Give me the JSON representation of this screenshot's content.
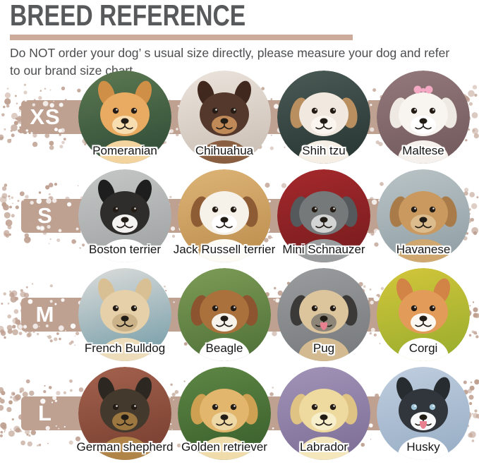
{
  "header": {
    "title": "BREED REFERENCE",
    "line1": "Do NOT order your dog’ s usual size directly, please measure your dog and refer",
    "line2": "to our brand size chart"
  },
  "colors": {
    "title": "#58595b",
    "body_text": "#4c4d4f",
    "divider_bar": "#cdab9a",
    "splatter_band": "#bfa192",
    "size_label": "#ffffff",
    "breed_label": "#161616"
  },
  "rows": [
    {
      "size": "XS",
      "breeds": [
        {
          "name": "Pomeranian",
          "ears": "pointy",
          "bg": [
            "#5d7a52",
            "#34503a"
          ],
          "fur": "#e9aa62",
          "ear": "#cf8f47",
          "muzzle": "#f7ddb0",
          "chest": "#f3d49e"
        },
        {
          "name": "Chihuahua",
          "ears": "pointy",
          "bg": [
            "#ece5dd",
            "#cdc2b8"
          ],
          "fur": "#54382b",
          "ear": "#41281f",
          "muzzle": "#c08a58",
          "chest": "#8a5f41"
        },
        {
          "name": "Shih tzu",
          "ears": "floppy",
          "bg": [
            "#4a5a55",
            "#2c3a37"
          ],
          "fur": "#f1e9df",
          "ear": "#b98f60",
          "muzzle": "#faf6ef",
          "chest": "#f5efe6"
        },
        {
          "name": "Maltese",
          "ears": "floppy",
          "bg": [
            "#93797b",
            "#765d60"
          ],
          "fur": "#f8f4f0",
          "ear": "#efe9e3",
          "muzzle": "#ffffff",
          "chest": "#f6f1ec",
          "bow": "#f3a9c3"
        }
      ]
    },
    {
      "size": "S",
      "breeds": [
        {
          "name": "Boston terrier",
          "ears": "pointy",
          "bg": [
            "#c6c8c8",
            "#a3a6a6"
          ],
          "fur": "#2e2d2c",
          "ear": "#1f1e1e",
          "muzzle": "#f4f3f1",
          "chest": "#ffffff"
        },
        {
          "name": "Jack Russell terrier",
          "ears": "floppy",
          "bg": [
            "#ddb477",
            "#c09252"
          ],
          "fur": "#f6f1e9",
          "ear": "#8e5c34",
          "muzzle": "#ffffff",
          "chest": "#fdfbf6"
        },
        {
          "name": "Mini Schnauzer",
          "ears": "floppy",
          "bg": [
            "#a5292c",
            "#7c1d20"
          ],
          "fur": "#76797a",
          "ear": "#56595b",
          "muzzle": "#d3d5d4",
          "chest": "#9a9d9e"
        },
        {
          "name": "Havanese",
          "ears": "floppy",
          "bg": [
            "#bac4c7",
            "#95a3a8"
          ],
          "fur": "#c9995f",
          "ear": "#a87b49",
          "muzzle": "#dcbb8d",
          "chest": "#cfa76f"
        }
      ]
    },
    {
      "size": "M",
      "breeds": [
        {
          "name": "French Bulldog",
          "ears": "pointy",
          "bg": [
            "#dddddb",
            "#7fa3ad"
          ],
          "fur": "#e5d0a9",
          "ear": "#d8c094",
          "muzzle": "#cbb289",
          "chest": "#eddcb9"
        },
        {
          "name": "Beagle",
          "ears": "floppy",
          "bg": [
            "#7d9c57",
            "#55763c"
          ],
          "fur": "#ab713c",
          "ear": "#8c5530",
          "muzzle": "#f7f2ea",
          "chest": "#ffffff"
        },
        {
          "name": "Pug",
          "ears": "floppy",
          "bg": [
            "#9a9c9e",
            "#7b7e80"
          ],
          "fur": "#dcc49c",
          "ear": "#3b3a39",
          "muzzle": "#8c8578",
          "chest": "#d3ba90",
          "tongue": "#e8808f"
        },
        {
          "name": "Corgi",
          "ears": "pointy",
          "bg": [
            "#d3c63b",
            "#9fb02f"
          ],
          "fur": "#e29b59",
          "ear": "#d28446",
          "muzzle": "#fdf9f2",
          "chest": "#ffffff"
        }
      ]
    },
    {
      "size": "L",
      "breeds": [
        {
          "name": "German shepherd",
          "ears": "pointy",
          "bg": [
            "#a4624e",
            "#7c4233"
          ],
          "fur": "#43392c",
          "ear": "#2c2721",
          "muzzle": "#9c773f",
          "chest": "#b08447"
        },
        {
          "name": "Golden retriever",
          "ears": "floppy",
          "bg": [
            "#5e8745",
            "#3e632f"
          ],
          "fur": "#e2b66c",
          "ear": "#cda052",
          "muzzle": "#eed9a6",
          "chest": "#f0dcab"
        },
        {
          "name": "Labrador",
          "ears": "floppy",
          "bg": [
            "#a294b8",
            "#81729a"
          ],
          "fur": "#eeda9f",
          "ear": "#dfc384",
          "muzzle": "#f7eecb",
          "chest": "#f4e7bb"
        },
        {
          "name": "Husky",
          "ears": "pointy",
          "bg": [
            "#c0cedf",
            "#9cb1c8"
          ],
          "fur": "#31363c",
          "ear": "#272c31",
          "muzzle": "#f8f9fa",
          "chest": "#ffffff",
          "eye": "#9fc4d8",
          "tongue": "#e8808f"
        }
      ]
    }
  ]
}
